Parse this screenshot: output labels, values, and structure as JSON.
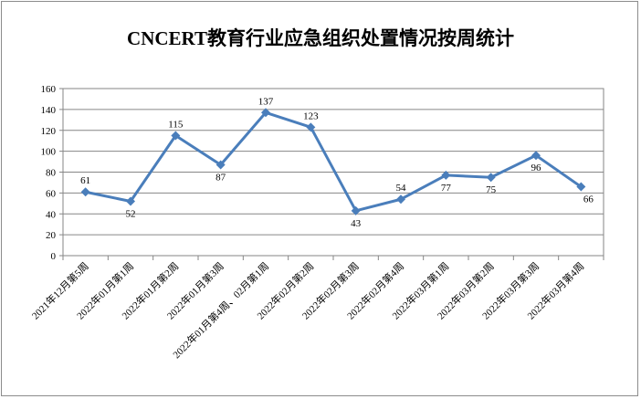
{
  "chart_data": {
    "type": "line",
    "title": "CNCERT教育行业应急组织处置情况按周统计",
    "categories": [
      "2021年12月第5周",
      "2022年01月第1周",
      "2022年01月第2周",
      "2022年01月第3周",
      "2022年01月第4周、02月第1周",
      "2022年02月第2周",
      "2022年02月第3周",
      "2022年02月第4周",
      "2022年03月第1周",
      "2022年03月第2周",
      "2022年03月第3周",
      "2022年03月第4周"
    ],
    "values": [
      61,
      52,
      115,
      87,
      137,
      123,
      43,
      54,
      77,
      75,
      96,
      66
    ],
    "ylim": [
      0,
      160
    ],
    "yticks": [
      0,
      20,
      40,
      60,
      80,
      100,
      120,
      140,
      160
    ],
    "grid": true,
    "line_color": "#4a7ebb",
    "legend": "none"
  }
}
